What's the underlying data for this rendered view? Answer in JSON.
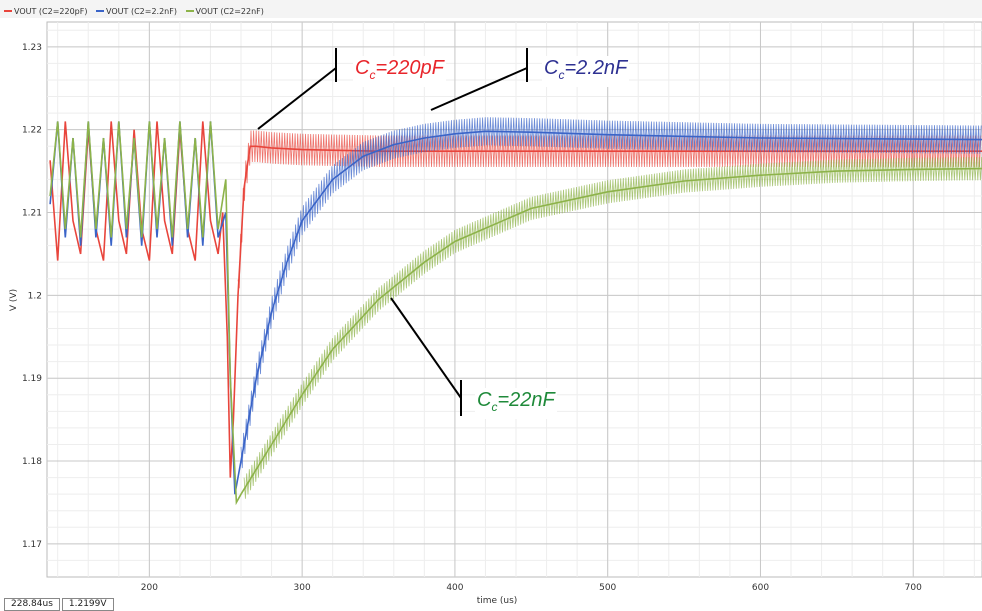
{
  "legend": [
    {
      "label": "VOUT (C2=220pF)",
      "color": "#e8453c"
    },
    {
      "label": "VOUT (C2=2.2nF)",
      "color": "#3a64c8"
    },
    {
      "label": "VOUT (C2=22nF)",
      "color": "#8db34a"
    }
  ],
  "readout": {
    "time": "228.84us",
    "value": "1.2199V"
  },
  "annotations": [
    {
      "prefix": "C",
      "sub": "c",
      "suffix": "=220pF",
      "color": "#e8252b"
    },
    {
      "prefix": "C",
      "sub": "c",
      "suffix": "=2.2nF",
      "color": "#2e3192"
    },
    {
      "prefix": "C",
      "sub": "c",
      "suffix": "=22nF",
      "color": "#1f8a3a"
    }
  ],
  "chart_data": {
    "type": "line",
    "xlabel": "time (us)",
    "ylabel": "V (V)",
    "xlim": [
      133,
      745
    ],
    "ylim": [
      1.166,
      1.233
    ],
    "x_ticks": [
      200,
      300,
      400,
      500,
      600,
      700
    ],
    "y_ticks": [
      1.17,
      1.18,
      1.19,
      1.2,
      1.21,
      1.22,
      1.23
    ],
    "grid": true,
    "series": [
      {
        "name": "VOUT (C2=220pF)",
        "color": "#e8453c",
        "x": [
          135,
          140,
          145,
          150,
          155,
          160,
          165,
          170,
          175,
          180,
          185,
          190,
          195,
          200,
          205,
          210,
          215,
          220,
          225,
          230,
          235,
          240,
          245,
          248,
          251,
          253,
          255,
          258,
          262,
          266,
          270,
          280,
          300,
          350,
          400,
          500,
          600,
          745
        ],
        "values": [
          1.2163,
          1.2042,
          1.221,
          1.209,
          1.205,
          1.22,
          1.208,
          1.2042,
          1.221,
          1.209,
          1.205,
          1.22,
          1.208,
          1.2042,
          1.221,
          1.209,
          1.205,
          1.22,
          1.208,
          1.2042,
          1.221,
          1.209,
          1.205,
          1.21,
          1.195,
          1.178,
          1.185,
          1.2,
          1.213,
          1.218,
          1.218,
          1.2178,
          1.2176,
          1.2174,
          1.2174,
          1.2174,
          1.2174,
          1.2174
        ],
        "ripple_after": 0.0038
      },
      {
        "name": "VOUT (C2=2.2nF)",
        "color": "#3a64c8",
        "x": [
          135,
          140,
          145,
          150,
          155,
          160,
          165,
          170,
          175,
          180,
          185,
          190,
          195,
          200,
          205,
          210,
          215,
          220,
          225,
          230,
          235,
          240,
          245,
          250,
          253,
          256,
          260,
          270,
          280,
          290,
          300,
          320,
          340,
          360,
          380,
          400,
          420,
          450,
          500,
          600,
          745
        ],
        "values": [
          1.211,
          1.221,
          1.207,
          1.219,
          1.206,
          1.221,
          1.207,
          1.219,
          1.206,
          1.221,
          1.207,
          1.219,
          1.206,
          1.221,
          1.207,
          1.219,
          1.206,
          1.221,
          1.207,
          1.219,
          1.206,
          1.221,
          1.207,
          1.21,
          1.19,
          1.176,
          1.18,
          1.19,
          1.198,
          1.204,
          1.209,
          1.214,
          1.2168,
          1.2182,
          1.219,
          1.2195,
          1.2198,
          1.2197,
          1.2194,
          1.219,
          1.2188
        ],
        "ripple_after": 0.0034
      },
      {
        "name": "VOUT (C2=22nF)",
        "color": "#8db34a",
        "x": [
          135,
          140,
          145,
          150,
          155,
          160,
          165,
          170,
          175,
          180,
          185,
          190,
          195,
          200,
          205,
          210,
          215,
          220,
          225,
          230,
          235,
          240,
          245,
          250,
          253,
          257,
          260,
          270,
          280,
          300,
          320,
          350,
          380,
          400,
          450,
          500,
          550,
          600,
          650,
          700,
          745
        ],
        "values": [
          1.212,
          1.221,
          1.208,
          1.219,
          1.207,
          1.221,
          1.208,
          1.219,
          1.207,
          1.221,
          1.208,
          1.219,
          1.207,
          1.221,
          1.208,
          1.219,
          1.207,
          1.221,
          1.208,
          1.219,
          1.207,
          1.221,
          1.208,
          1.214,
          1.19,
          1.175,
          1.176,
          1.179,
          1.182,
          1.188,
          1.1935,
          1.1995,
          1.204,
          1.2065,
          1.2105,
          1.2125,
          1.2138,
          1.2145,
          1.215,
          1.2152,
          1.2153
        ],
        "ripple_after": 0.0028
      }
    ]
  }
}
